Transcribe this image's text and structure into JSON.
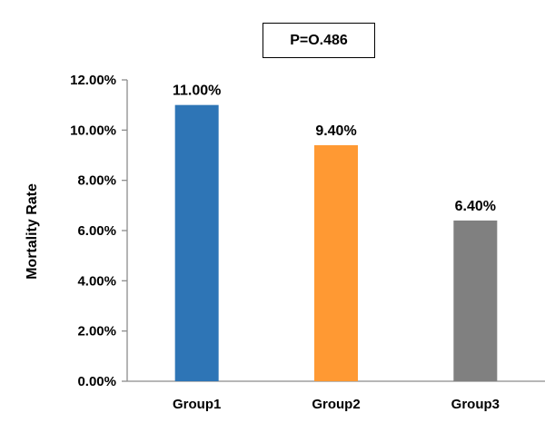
{
  "chart_data": {
    "type": "bar",
    "title": "",
    "xlabel": "",
    "ylabel": "Mortality Rate",
    "categories": [
      "Group1",
      "Group2",
      "Group3"
    ],
    "values": [
      11.0,
      9.4,
      6.4
    ],
    "data_labels": [
      "11.00%",
      "9.40%",
      "6.40%"
    ],
    "colors": [
      "#2E75B6",
      "#FF9933",
      "#808080"
    ],
    "ylim": [
      0,
      12
    ],
    "yticks": [
      0,
      2,
      4,
      6,
      8,
      10,
      12
    ],
    "ytick_labels": [
      "0.00%",
      "2.00%",
      "4.00%",
      "6.00%",
      "8.00%",
      "10.00%",
      "12.00%"
    ],
    "grid": false,
    "legend": "none",
    "annotation": "P=O.486"
  }
}
